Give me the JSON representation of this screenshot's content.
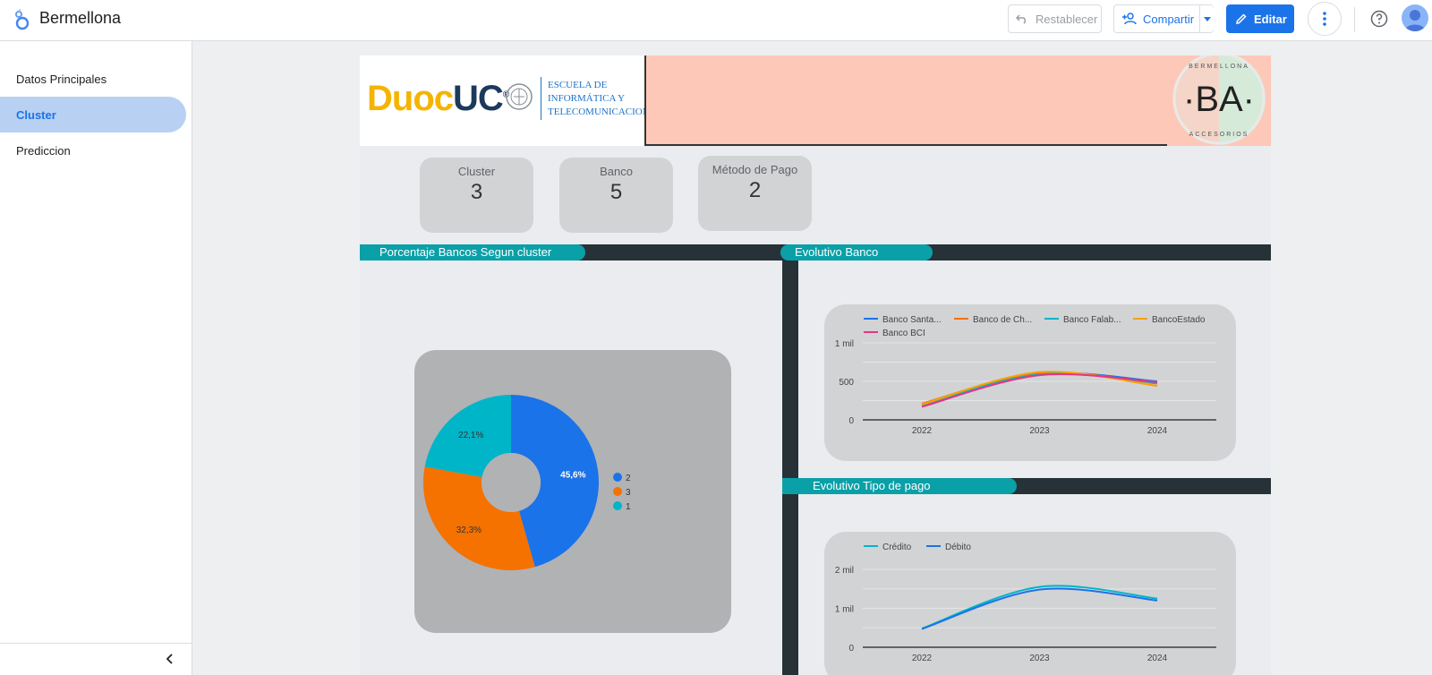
{
  "app": {
    "title": "Bermellona"
  },
  "toolbar": {
    "reset_label": "Restablecer",
    "share_label": "Compartir",
    "edit_label": "Editar"
  },
  "sidebar": {
    "items": [
      {
        "label": "Datos Principales",
        "active": false
      },
      {
        "label": "Cluster",
        "active": true
      },
      {
        "label": "Prediccion",
        "active": false
      }
    ]
  },
  "header": {
    "duoc_word_1": "Duoc",
    "duoc_word_2": "UC",
    "duoc_registered": "®",
    "school_line1": "ESCUELA DE",
    "school_line2": "INFORMÁTICA Y",
    "school_line3": "TELECOMUNICACIONES",
    "ba_monogram": "·BA·",
    "ba_top": "BERMELLONA",
    "ba_bottom": "ACCESORIOS"
  },
  "kpis": [
    {
      "label": "Cluster",
      "value": "3"
    },
    {
      "label": "Banco",
      "value": "5"
    },
    {
      "label": "Método de Pago",
      "value": "2"
    }
  ],
  "sections": {
    "pie_title": "Porcentaje Bancos Segun cluster",
    "bank_title": "Evolutivo Banco",
    "payment_title": "Evolutivo Tipo de pago"
  },
  "colors": {
    "accent": "#1a73e8",
    "teal": "#0aa0a8",
    "dark": "#263238",
    "header_pink": "#fdc8b7"
  },
  "chart_data": [
    {
      "type": "pie",
      "donut": true,
      "title": "Porcentaje Bancos Segun cluster",
      "categories": [
        "2",
        "3",
        "1"
      ],
      "values": [
        45.6,
        32.3,
        22.1
      ],
      "labels": [
        "45,6%",
        "32,3%",
        "22,1%"
      ],
      "colors": [
        "#1a73e8",
        "#f57100",
        "#00b5c8"
      ],
      "legend": "right"
    },
    {
      "type": "line",
      "title": "Evolutivo Banco",
      "x": [
        "2022",
        "2023",
        "2024"
      ],
      "yticks": [
        "0",
        "500",
        "1 mil"
      ],
      "ylim": [
        0,
        1000
      ],
      "legend": "top",
      "series": [
        {
          "name": "Banco Santa...",
          "color": "#1a73e8",
          "values": [
            200,
            600,
            500
          ]
        },
        {
          "name": "Banco de Ch...",
          "color": "#f57100",
          "values": [
            210,
            610,
            470
          ]
        },
        {
          "name": "Banco Falab...",
          "color": "#00b5c8",
          "values": [
            190,
            590,
            480
          ]
        },
        {
          "name": "BancoEstado",
          "color": "#f5a300",
          "values": [
            200,
            620,
            440
          ]
        },
        {
          "name": "Banco BCI",
          "color": "#e8338a",
          "values": [
            170,
            580,
            490
          ]
        }
      ]
    },
    {
      "type": "line",
      "title": "Evolutivo Tipo de pago",
      "x": [
        "2022",
        "2023",
        "2024"
      ],
      "yticks": [
        "0",
        "1 mil",
        "2 mil"
      ],
      "ylim": [
        0,
        2000
      ],
      "legend": "top",
      "series": [
        {
          "name": "Crédito",
          "color": "#00b5c8",
          "values": [
            480,
            1550,
            1250
          ]
        },
        {
          "name": "Débito",
          "color": "#1a73e8",
          "values": [
            470,
            1480,
            1200
          ]
        }
      ]
    }
  ]
}
